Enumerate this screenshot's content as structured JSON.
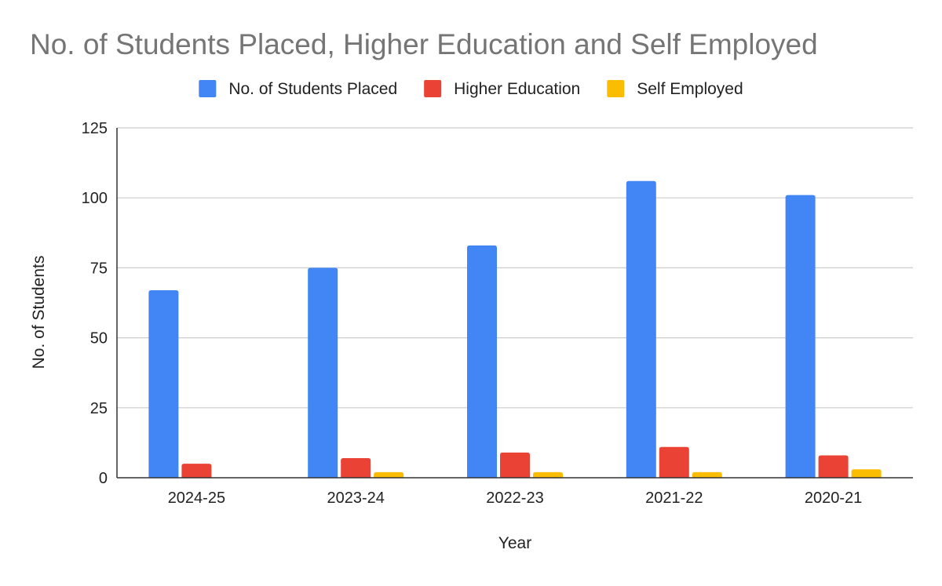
{
  "chart_data": {
    "type": "bar",
    "title": "No. of Students Placed, Higher Education and Self Employed",
    "xlabel": "Year",
    "ylabel": "No. of Students",
    "categories": [
      "2024-25",
      "2023-24",
      "2022-23",
      "2021-22",
      "2020-21"
    ],
    "series": [
      {
        "name": "No. of Students Placed",
        "color": "#4285f4",
        "values": [
          67,
          75,
          83,
          106,
          101
        ]
      },
      {
        "name": "Higher Education",
        "color": "#ea4335",
        "values": [
          5,
          7,
          9,
          11,
          8
        ]
      },
      {
        "name": "Self Employed",
        "color": "#fbbc04",
        "values": [
          0,
          2,
          2,
          2,
          3
        ]
      }
    ],
    "ylim": [
      0,
      125
    ],
    "yticks": [
      0,
      25,
      50,
      75,
      100,
      125
    ],
    "grid": true,
    "legend": "top-center"
  }
}
